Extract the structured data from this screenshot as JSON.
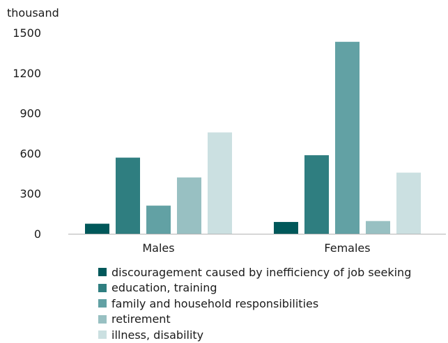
{
  "chart_data": {
    "type": "bar",
    "unit_label": "thousand",
    "categories": [
      "Males",
      "Females"
    ],
    "series": [
      {
        "name": "discouragement caused by inefficiency of job seeking",
        "color": "#00585a",
        "values": [
          75,
          88
        ]
      },
      {
        "name": "education, training",
        "color": "#2f7e80",
        "values": [
          568,
          586
        ]
      },
      {
        "name": "family and household responsibilities",
        "color": "#62a1a4",
        "values": [
          210,
          1432
        ]
      },
      {
        "name": "retirement",
        "color": "#98c0c2",
        "values": [
          420,
          95
        ]
      },
      {
        "name": "illness, disability",
        "color": "#cbe0e1",
        "values": [
          756,
          456
        ]
      }
    ],
    "yticks": [
      0,
      300,
      600,
      900,
      1200,
      1500
    ],
    "ylim": [
      0,
      1500
    ],
    "grid": false,
    "legend_position": "bottom"
  }
}
